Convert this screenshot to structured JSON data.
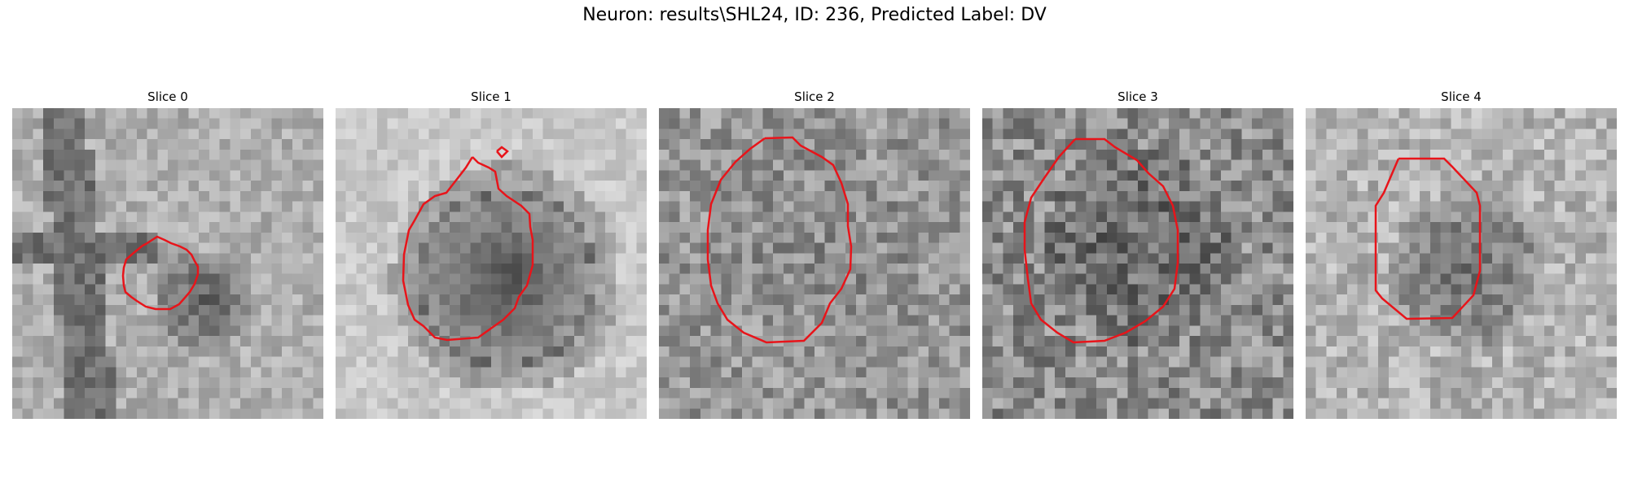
{
  "figure": {
    "suptitle": "Neuron: results\\SHL24, ID: 236, Predicted Label: DV"
  },
  "colors": {
    "contour": "#e8141a"
  },
  "panels": [
    {
      "title": "Slice 0"
    },
    {
      "title": "Slice 1"
    },
    {
      "title": "Slice 2"
    },
    {
      "title": "Slice 3"
    },
    {
      "title": "Slice 4"
    }
  ]
}
